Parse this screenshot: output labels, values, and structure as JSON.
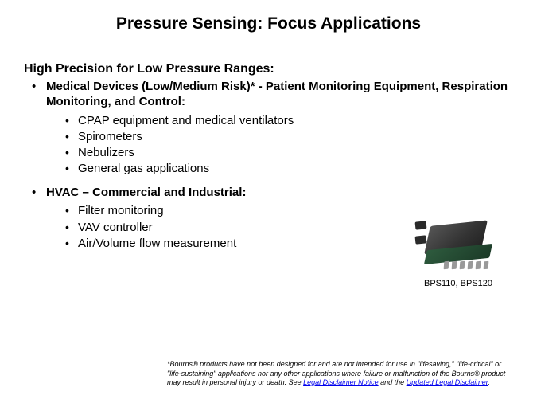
{
  "title": "Pressure Sensing: Focus Applications",
  "subtitle": "High Precision for Low Pressure Ranges:",
  "sections": [
    {
      "heading": "Medical Devices (Low/Medium Risk)* - Patient Monitoring Equipment, Respiration Monitoring, and Control:",
      "items": [
        "CPAP equipment and medical ventilators",
        "Spirometers",
        "Nebulizers",
        "General gas applications"
      ]
    },
    {
      "heading": "HVAC – Commercial and Industrial:",
      "items": [
        "Filter monitoring",
        "VAV controller",
        "Air/Volume flow measurement"
      ]
    }
  ],
  "product": {
    "caption": "BPS110, BPS120"
  },
  "disclaimer": {
    "prefix": "*Bourns® products have not been designed for and are not intended for use in \"lifesaving,\" \"life-critical\" or \"life-sustaining\" applications nor any other applications where failure or malfunction of the Bourns® product may result in personal injury or death. See ",
    "link1": "Legal Disclaimer Notice",
    "middle": " and the ",
    "link2": "Updated Legal Disclaimer",
    "suffix": "."
  },
  "colors": {
    "background": "#ffffff",
    "text": "#000000",
    "link": "#0000ee",
    "sensor_dark": "#333333",
    "sensor_darker": "#222222",
    "pcb_green": "#2e5b3e",
    "pin_gray": "#999999"
  },
  "typography": {
    "title_fontsize": 21,
    "subtitle_fontsize": 16,
    "body_fontsize": 15,
    "caption_fontsize": 11,
    "disclaimer_fontsize": 9
  }
}
